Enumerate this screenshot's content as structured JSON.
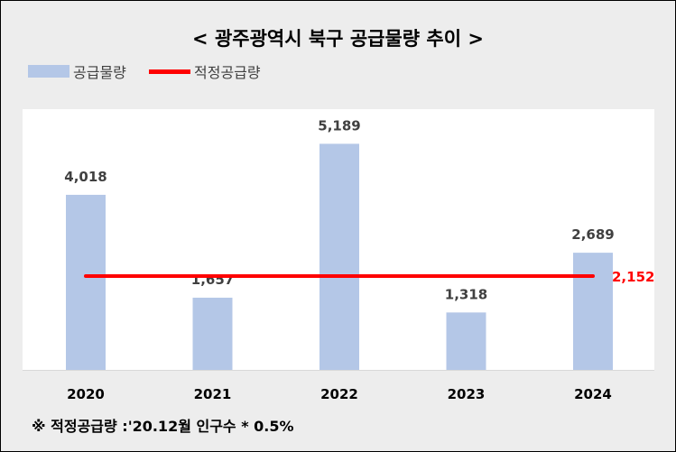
{
  "chart_data": {
    "type": "bar",
    "title": "< 광주광역시 북구 공급물량 추이 >",
    "categories": [
      "2020",
      "2021",
      "2022",
      "2023",
      "2024"
    ],
    "series": [
      {
        "name": "공급물량",
        "type": "bar",
        "values": [
          4018,
          1657,
          5189,
          1318,
          2689
        ],
        "labels": [
          "4,018",
          "1,657",
          "5,189",
          "1,318",
          "2,689"
        ]
      },
      {
        "name": "적정공급량",
        "type": "line",
        "value": 2152,
        "label": "2,152"
      }
    ],
    "ylim": [
      0,
      5800
    ],
    "grid": false,
    "legend": "top-left",
    "colors": {
      "bar": "#b4c7e7",
      "line": "#ff0000",
      "line_label": "#ff0000",
      "bar_label": "#404040",
      "background": "#ededed",
      "plot_area": "#ffffff"
    }
  },
  "footnote": "※ 적정공급량 :'20.12월 인구수 * 0.5%"
}
